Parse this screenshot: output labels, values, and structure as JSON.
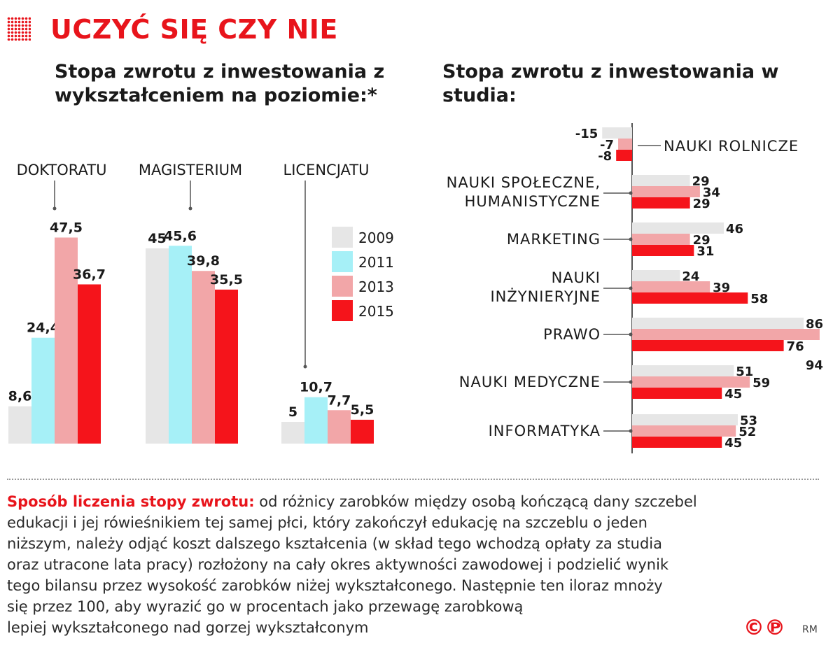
{
  "header": {
    "title": "UCZYĆ SIĘ CZY NIE",
    "left_subtitle": "Stopa zwrotu z inwestowania z wykształceniem na poziomie:*",
    "right_subtitle": "Stopa zwrotu z inwestowania w studia:"
  },
  "colors": {
    "2009": "#e6e6e6",
    "2011": "#a6f0f7",
    "2013": "#f2a6a8",
    "2015": "#f5141b",
    "accent": "#e8141b"
  },
  "chart_data": [
    {
      "type": "bar",
      "categories": [
        "DOKTORATU",
        "MAGISTERIUM",
        "LICENCJATU"
      ],
      "series": [
        {
          "name": "2009",
          "values": [
            8.6,
            45,
            5
          ],
          "labels": [
            "8,6",
            "45",
            "5"
          ]
        },
        {
          "name": "2011",
          "values": [
            24.4,
            45.6,
            10.7
          ],
          "labels": [
            "24,4",
            "45,6",
            "10,7"
          ]
        },
        {
          "name": "2013",
          "values": [
            47.5,
            39.8,
            7.7
          ],
          "labels": [
            "47,5",
            "39,8",
            "7,7"
          ]
        },
        {
          "name": "2015",
          "values": [
            36.7,
            35.5,
            5.5
          ],
          "labels": [
            "36,7",
            "35,5",
            "5,5"
          ]
        }
      ],
      "legend": [
        "2009",
        "2011",
        "2013",
        "2015"
      ],
      "legend_position": "right"
    },
    {
      "type": "bar",
      "orientation": "horizontal",
      "categories": [
        "NAUKI ROLNICZE",
        "NAUKI SPOŁECZNE, HUMANISTYCZNE",
        "MARKETING",
        "NAUKI INŻYNIERYJNE",
        "PRAWO",
        "NAUKI MEDYCZNE",
        "INFORMATYKA"
      ],
      "category_lines": [
        [
          "NAUKI ROLNICZE"
        ],
        [
          "NAUKI SPOŁECZNE,",
          "HUMANISTYCZNE"
        ],
        [
          "MARKETING"
        ],
        [
          "NAUKI",
          "INŻYNIERYJNE"
        ],
        [
          "PRAWO"
        ],
        [
          "NAUKI MEDYCZNE"
        ],
        [
          "INFORMATYKA"
        ]
      ],
      "series": [
        {
          "name": "2009",
          "values": [
            -15,
            29,
            46,
            24,
            86,
            51,
            53
          ]
        },
        {
          "name": "2013",
          "values": [
            -7,
            34,
            29,
            39,
            94,
            59,
            52
          ]
        },
        {
          "name": "2015",
          "values": [
            -8,
            29,
            31,
            58,
            76,
            45,
            45
          ]
        }
      ]
    }
  ],
  "footnote": {
    "lead": "Sposób liczenia stopy zwrotu:",
    "lines": [
      "od różnicy zarobków między osobą kończącą dany szczebel",
      "edukacji i jej rówieśnikiem tej samej płci, który zakończył edukację na szczeblu o jeden",
      "niższym, należy odjąć koszt dalszego kształcenia (w skład tego wchodzą opłaty za studia",
      "oraz utracone lata pracy) rozłożony na cały okres aktywności zawodowej i podzielić wynik",
      "tego bilansu przez wysokość zarobków niżej wykształconego. Następnie ten iloraz mnoży",
      "się przez 100, aby wyrazić go w procentach jako przewagę zarobkową",
      "lepiej wykształconego nad gorzej wykształconym"
    ]
  },
  "credits": {
    "symbols": "©℗",
    "initials": "RM"
  }
}
